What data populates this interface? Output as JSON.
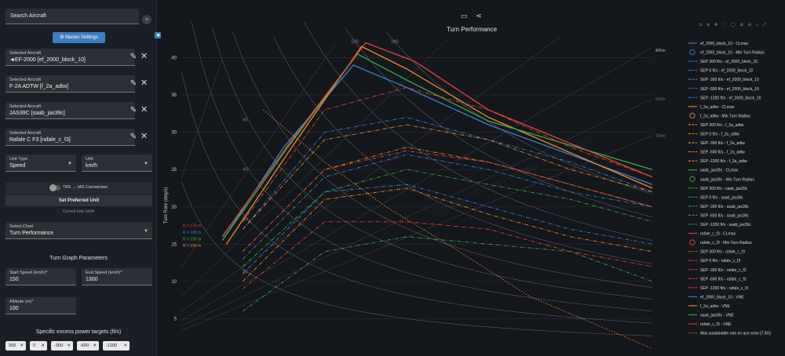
{
  "sidebar": {
    "search_placeholder": "Search Aircraft",
    "master_settings": "Master Settings",
    "selected_label": "Selected Aircraft",
    "aircraft": [
      "◄EF-2000 [ef_2000_block_10]",
      "F-2A ADTW [f_2a_adtw]",
      "JAS39C [saab_jas39c]",
      "Rafale C F3 [rafale_c_f3]"
    ],
    "unit_type_label": "Unit Type",
    "unit_type": "Speed",
    "unit_label": "Unit",
    "unit": "km/h",
    "toggle_label": "TAS → IAS Conversion",
    "set_preferred": "Set Preferred Unit",
    "current_unit": "Current Unit: km/h",
    "chart_select_label": "Select Chart",
    "chart_select": "Turn Performance",
    "turn_params_title": "Turn Graph Parameters",
    "start_speed_label": "Start Speed (km/h)*",
    "start_speed": "150",
    "end_speed_label": "End Speed (km/h)*",
    "end_speed": "1300",
    "altitude_label": "Altitude (m)*",
    "altitude": "100",
    "sep_title": "Specific excess power targets (ft/s)",
    "sep_targets": [
      "300",
      "0",
      "-300",
      "-600",
      "-1200"
    ]
  },
  "icons": {
    "remove": "close-icon",
    "edit": "pencil-icon",
    "collapse": "chevron-left-icon"
  },
  "chart_data": {
    "type": "line",
    "title": "Turn Performance",
    "ylabel": "Turn Rate (deg/s)",
    "ylim": [
      0,
      43
    ],
    "yticks": [
      5,
      10,
      15,
      20,
      25,
      30,
      35,
      40
    ],
    "xlim": [
      150,
      1300
    ],
    "grid": true,
    "legend_position": "right",
    "g_labels": [
      "2G",
      "3G",
      "4G",
      "5G",
      "6G",
      "8G",
      "10G",
      "12G",
      "14G"
    ],
    "radius_labels": [
      "100m",
      "200m",
      "300m",
      "400m",
      "500m",
      "600m",
      "700m"
    ],
    "watermark": "DO NOT USE THIS FOR BUG REPORTING",
    "annotations": [
      "R = 175 m",
      "R = 165 m",
      "R = 196 m",
      "R = 165 m"
    ],
    "colors": {
      "ef_2000_block_10": "#3f7fcf",
      "f_2a_adtw": "#f08a32",
      "saab_jas39c": "#3cab4a",
      "rafale_c_f3": "#e5473e"
    },
    "series": [
      {
        "name": "ef_2000_block_10 - CLmax",
        "aircraft": "ef_2000_block_10",
        "kind": "clmax",
        "x": [
          250,
          400,
          570,
          700,
          900,
          1300
        ],
        "y": [
          15.5,
          28,
          39,
          36,
          31,
          23
        ]
      },
      {
        "name": "f_2a_adtw - CLmax",
        "aircraft": "f_2a_adtw",
        "kind": "clmax",
        "x": [
          260,
          420,
          590,
          700,
          900,
          1300
        ],
        "y": [
          15,
          28,
          41.5,
          38.5,
          32,
          22.5
        ]
      },
      {
        "name": "saab_jas39c - CLmax",
        "aircraft": "saab_jas39c",
        "kind": "clmax",
        "x": [
          250,
          410,
          580,
          700,
          900,
          1300
        ],
        "y": [
          15.5,
          28,
          40.5,
          37,
          31.5,
          25
        ]
      },
      {
        "name": "rafale_c_f3 - CLmax",
        "aircraft": "rafale_c_f3",
        "kind": "clmax",
        "x": [
          250,
          420,
          600,
          720,
          900,
          1300
        ],
        "y": [
          16,
          29,
          42,
          39.5,
          33,
          24
        ]
      },
      {
        "name": "ef_2000_block_10 - SEP 300 ft/s",
        "aircraft": "ef_2000_block_10",
        "kind": "sep",
        "x": [
          300,
          500,
          700,
          900,
          1100,
          1300
        ],
        "y": [
          11,
          22,
          23,
          20,
          17,
          15
        ]
      },
      {
        "name": "f_2a_adtw - SEP 300 ft/s",
        "aircraft": "f_2a_adtw",
        "kind": "sep",
        "x": [
          300,
          500,
          700,
          900,
          1100,
          1300
        ],
        "y": [
          10,
          21,
          22.5,
          19,
          16,
          14
        ]
      },
      {
        "name": "saab_jas39c - SEP 300 ft/s",
        "aircraft": "saab_jas39c",
        "kind": "sep",
        "x": [
          300,
          500,
          700,
          900,
          1100,
          1300
        ],
        "y": [
          6,
          14,
          16,
          15,
          14,
          10
        ]
      },
      {
        "name": "rafale_c_f3 - SEP 300 ft/s",
        "aircraft": "rafale_c_f3",
        "kind": "sep",
        "x": [
          300,
          500,
          700,
          900,
          1100,
          1300
        ],
        "y": [
          9,
          18,
          18,
          17,
          14,
          12
        ]
      },
      {
        "name": "ef_2000_block_10 - SEP 0 ft/s",
        "aircraft": "ef_2000_block_10",
        "kind": "sep",
        "x": [
          300,
          500,
          700,
          900,
          1100,
          1300
        ],
        "y": [
          13,
          24,
          27,
          25,
          22,
          20
        ]
      },
      {
        "name": "f_2a_adtw - SEP 0 ft/s",
        "aircraft": "f_2a_adtw",
        "kind": "sep",
        "x": [
          300,
          500,
          700,
          900,
          1100,
          1300
        ],
        "y": [
          14,
          25,
          28,
          26,
          23,
          20
        ]
      },
      {
        "name": "saab_jas39c - SEP 0 ft/s",
        "aircraft": "saab_jas39c",
        "kind": "sep",
        "x": [
          300,
          500,
          700,
          900,
          1100,
          1300
        ],
        "y": [
          12,
          22,
          25,
          23,
          21,
          18
        ]
      },
      {
        "name": "rafale_c_f3 - SEP 0 ft/s",
        "aircraft": "rafale_c_f3",
        "kind": "sep",
        "x": [
          300,
          500,
          700,
          900,
          1100,
          1300
        ],
        "y": [
          14,
          25,
          27.5,
          26,
          23,
          20
        ]
      },
      {
        "name": "ef_2000_block_10 - SEP -600 ft/s",
        "aircraft": "ef_2000_block_10",
        "kind": "sep",
        "x": [
          300,
          500,
          700,
          900,
          1100,
          1300
        ],
        "y": [
          17,
          30,
          32,
          29,
          26,
          22
        ]
      },
      {
        "name": "f_2a_adtw - SEP -600 ft/s",
        "aircraft": "f_2a_adtw",
        "kind": "sep",
        "x": [
          300,
          500,
          700,
          900,
          1100,
          1300
        ],
        "y": [
          17,
          29,
          31,
          29,
          25,
          22
        ]
      },
      {
        "name": "rafale_c_f3 - SEP -1200 ft/s",
        "aircraft": "rafale_c_f3",
        "kind": "sep",
        "x": [
          300,
          500,
          700,
          900,
          1100,
          1300
        ],
        "y": [
          18,
          33,
          36,
          33,
          28,
          24
        ]
      },
      {
        "name": "Max sustainable rate on ace crew (7.5G)",
        "aircraft": "",
        "kind": "limit",
        "x": [
          350,
          500,
          650,
          800,
          1000,
          1300
        ],
        "y": [
          33,
          26,
          20,
          15,
          8,
          1
        ]
      }
    ]
  },
  "legend": [
    {
      "text": "ef_2000_block_10 - CLmax",
      "color": "#3f7fcf",
      "style": "solid"
    },
    {
      "text": "ef_2000_block_10 - Min Turn Radius",
      "color": "#3f7fcf",
      "style": "circle"
    },
    {
      "text": "SEP 300 ft/s - ef_2000_block_10",
      "color": "#3f7fcf",
      "style": "dash"
    },
    {
      "text": "SEP 0 ft/s - ef_2000_block_10",
      "color": "#3f7fcf",
      "style": "dash"
    },
    {
      "text": "SEP -300 ft/s - ef_2000_block_10",
      "color": "#3f7fcf",
      "style": "dash"
    },
    {
      "text": "SEP -600 ft/s - ef_2000_block_10",
      "color": "#3f7fcf",
      "style": "dash"
    },
    {
      "text": "SEP -1200 ft/s - ef_2000_block_10",
      "color": "#3f7fcf",
      "style": "dash"
    },
    {
      "text": "f_2a_adtw - CLmax",
      "color": "#f08a32",
      "style": "solid"
    },
    {
      "text": "f_2a_adtw - Min Turn Radius",
      "color": "#f08a32",
      "style": "circle"
    },
    {
      "text": "SEP 300 ft/s - f_2a_adtw",
      "color": "#f08a32",
      "style": "dash"
    },
    {
      "text": "SEP 0 ft/s - f_2a_adtw",
      "color": "#f08a32",
      "style": "dash"
    },
    {
      "text": "SEP -300 ft/s - f_2a_adtw",
      "color": "#f08a32",
      "style": "dash"
    },
    {
      "text": "SEP -600 ft/s - f_2a_adtw",
      "color": "#f08a32",
      "style": "dash"
    },
    {
      "text": "SEP -1200 ft/s - f_2a_adtw",
      "color": "#f08a32",
      "style": "dash"
    },
    {
      "text": "saab_jas39c - CLmax",
      "color": "#3cab4a",
      "style": "solid"
    },
    {
      "text": "saab_jas39c - Min Turn Radius",
      "color": "#3cab4a",
      "style": "circle"
    },
    {
      "text": "SEP 300 ft/s - saab_jas39c",
      "color": "#3cab4a",
      "style": "dash"
    },
    {
      "text": "SEP 0 ft/s - saab_jas39c",
      "color": "#3cab4a",
      "style": "dash"
    },
    {
      "text": "SEP -300 ft/s - saab_jas39c",
      "color": "#3cab4a",
      "style": "dash"
    },
    {
      "text": "SEP -600 ft/s - saab_jas39c",
      "color": "#3cab4a",
      "style": "dash"
    },
    {
      "text": "SEP -1200 ft/s - saab_jas39c",
      "color": "#3cab4a",
      "style": "dash"
    },
    {
      "text": "rafale_c_f3 - CLmax",
      "color": "#e5473e",
      "style": "solid"
    },
    {
      "text": "rafale_c_f3 - Min Turn Radius",
      "color": "#e5473e",
      "style": "circle"
    },
    {
      "text": "SEP 300 ft/s - rafale_c_f3",
      "color": "#e5473e",
      "style": "dash"
    },
    {
      "text": "SEP 0 ft/s - rafale_c_f3",
      "color": "#e5473e",
      "style": "dash"
    },
    {
      "text": "SEP -300 ft/s - rafale_c_f3",
      "color": "#e5473e",
      "style": "dash"
    },
    {
      "text": "SEP -600 ft/s - rafale_c_f3",
      "color": "#e5473e",
      "style": "dash"
    },
    {
      "text": "SEP -1200 ft/s - rafale_c_f3",
      "color": "#e5473e",
      "style": "dash"
    },
    {
      "text": "ef_2000_block_10 - VNE",
      "color": "#3f7fcf",
      "style": "solid"
    },
    {
      "text": "f_2a_adtw - VNE",
      "color": "#f08a32",
      "style": "solid"
    },
    {
      "text": "saab_jas39c - VNE",
      "color": "#3cab4a",
      "style": "solid"
    },
    {
      "text": "rafale_c_f3 - VNE",
      "color": "#e5473e",
      "style": "solid"
    },
    {
      "text": "Max sustainable rate on ace crew (7.5G)",
      "color": "#f08a32",
      "style": "dot"
    }
  ]
}
